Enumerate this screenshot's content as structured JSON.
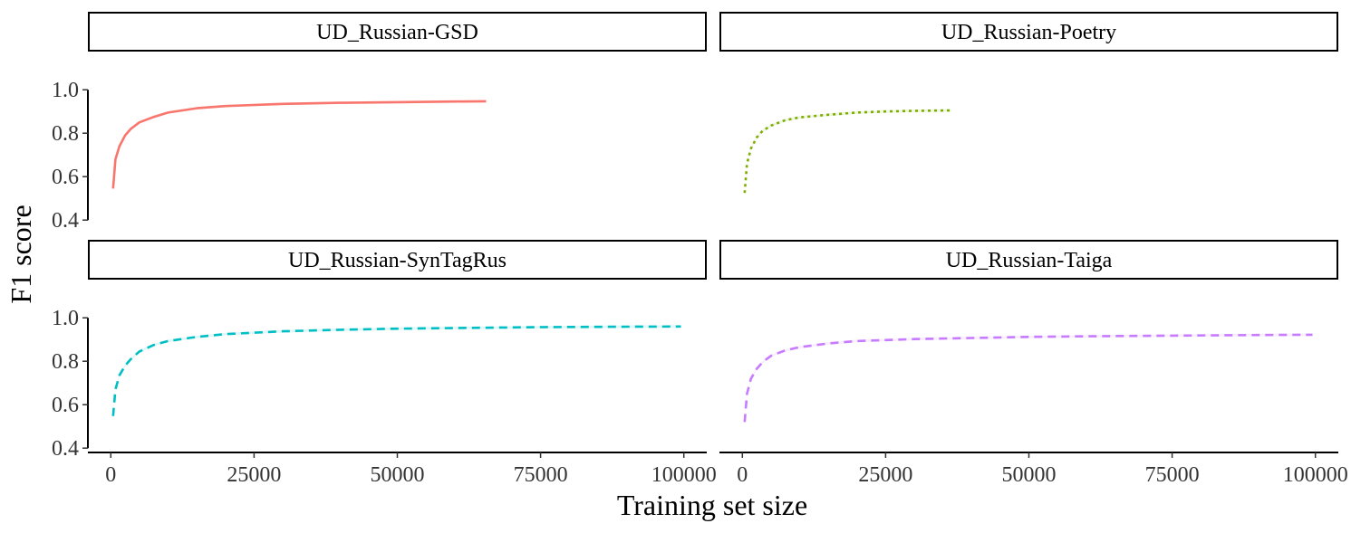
{
  "chart_data": {
    "type": "line",
    "layout": "facet-grid 2x2",
    "xlabel": "Training set size",
    "ylabel": "F1 score",
    "xlim": [
      -4000,
      104000
    ],
    "ylim": [
      0.38,
      1.18
    ],
    "x_ticks": [
      0,
      25000,
      50000,
      75000,
      100000
    ],
    "y_ticks": [
      0.4,
      0.6,
      0.8,
      1.0
    ],
    "x_tick_labels": [
      "0",
      "25000",
      "50000",
      "75000",
      "100000"
    ],
    "y_tick_labels": [
      "0.4",
      "0.6",
      "0.8",
      "1.0"
    ],
    "grid": false,
    "legend": "none",
    "panels": [
      {
        "name": "UD_Russian-GSD",
        "color": "#F8766D",
        "linestyle": "solid",
        "points": [
          [
            400,
            0.545
          ],
          [
            800,
            0.68
          ],
          [
            1500,
            0.74
          ],
          [
            2500,
            0.79
          ],
          [
            3500,
            0.82
          ],
          [
            5000,
            0.85
          ],
          [
            7500,
            0.875
          ],
          [
            10000,
            0.895
          ],
          [
            15000,
            0.915
          ],
          [
            20000,
            0.925
          ],
          [
            30000,
            0.935
          ],
          [
            40000,
            0.94
          ],
          [
            50000,
            0.943
          ],
          [
            60000,
            0.946
          ],
          [
            65500,
            0.947
          ]
        ]
      },
      {
        "name": "UD_Russian-Poetry",
        "color": "#7CAE00",
        "linestyle": "dotted",
        "points": [
          [
            400,
            0.525
          ],
          [
            800,
            0.66
          ],
          [
            1500,
            0.73
          ],
          [
            2500,
            0.78
          ],
          [
            3500,
            0.81
          ],
          [
            5000,
            0.835
          ],
          [
            7500,
            0.86
          ],
          [
            10000,
            0.873
          ],
          [
            15000,
            0.885
          ],
          [
            20000,
            0.895
          ],
          [
            25000,
            0.9
          ],
          [
            30000,
            0.903
          ],
          [
            36500,
            0.905
          ]
        ]
      },
      {
        "name": "UD_Russian-SynTagRus",
        "color": "#00BFC4",
        "linestyle": "dashed",
        "points": [
          [
            400,
            0.548
          ],
          [
            800,
            0.67
          ],
          [
            1500,
            0.735
          ],
          [
            2500,
            0.78
          ],
          [
            3500,
            0.81
          ],
          [
            5000,
            0.845
          ],
          [
            7500,
            0.875
          ],
          [
            10000,
            0.893
          ],
          [
            15000,
            0.912
          ],
          [
            20000,
            0.925
          ],
          [
            30000,
            0.938
          ],
          [
            40000,
            0.945
          ],
          [
            50000,
            0.95
          ],
          [
            60000,
            0.953
          ],
          [
            75000,
            0.957
          ],
          [
            90000,
            0.959
          ],
          [
            99500,
            0.96
          ]
        ]
      },
      {
        "name": "UD_Russian-Taiga",
        "color": "#C77CFF",
        "linestyle": "dashed",
        "points": [
          [
            400,
            0.52
          ],
          [
            800,
            0.65
          ],
          [
            1500,
            0.72
          ],
          [
            2500,
            0.765
          ],
          [
            3500,
            0.795
          ],
          [
            5000,
            0.825
          ],
          [
            7500,
            0.85
          ],
          [
            10000,
            0.865
          ],
          [
            15000,
            0.882
          ],
          [
            20000,
            0.893
          ],
          [
            30000,
            0.902
          ],
          [
            40000,
            0.907
          ],
          [
            50000,
            0.912
          ],
          [
            60000,
            0.915
          ],
          [
            75000,
            0.918
          ],
          [
            90000,
            0.921
          ],
          [
            99500,
            0.922
          ]
        ]
      }
    ]
  }
}
